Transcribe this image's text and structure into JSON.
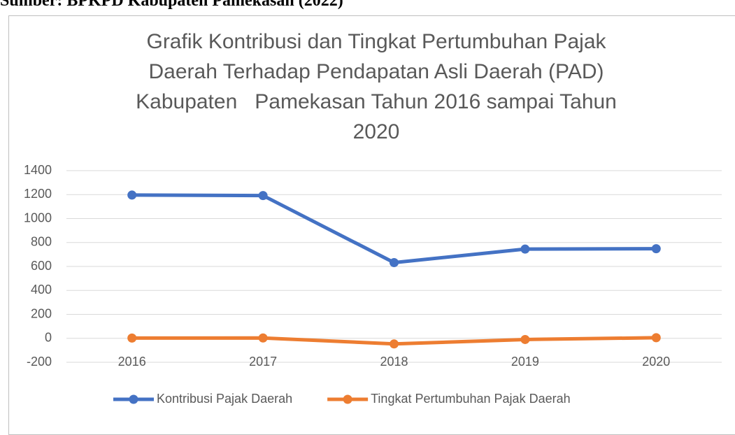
{
  "caption": "Sumber: BPKPD Kabupaten Pamekasan (2022)",
  "chart_data": {
    "type": "line",
    "title": "Grafik Kontribusi dan Tingkat Pertumbuhan Pajak Daerah Terhadap Pendapatan Asli Daerah (PAD) Kabupaten   Pamekasan Tahun 2016 sampai Tahun 2020",
    "categories": [
      "2016",
      "2017",
      "2018",
      "2019",
      "2020"
    ],
    "series": [
      {
        "name": "Kontribusi Pajak Daerah",
        "color": "#4472c4",
        "values": [
          1196,
          1192,
          632,
          745,
          748
        ]
      },
      {
        "name": "Tingkat Pertumbuhan Pajak Daerah",
        "color": "#ed7d31",
        "values": [
          2,
          3,
          -47,
          -10,
          5
        ]
      }
    ],
    "ylim": [
      -200,
      1400
    ],
    "yticks": [
      -200,
      0,
      200,
      400,
      600,
      800,
      1000,
      1200,
      1400
    ],
    "grid": true,
    "legend": "bottom"
  }
}
